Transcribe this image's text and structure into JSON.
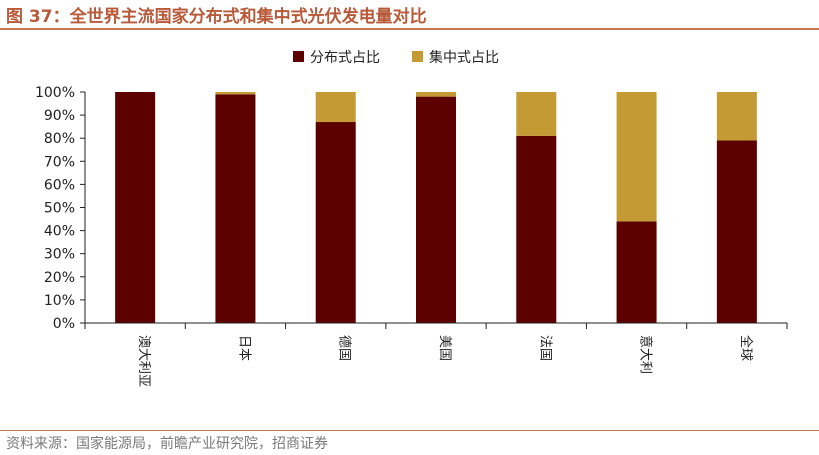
{
  "header": {
    "title": "图 37：全世界主流国家分布式和集中式光伏发电量对比"
  },
  "footer": {
    "source": "资料来源：国家能源局，前瞻产业研究院，招商证券"
  },
  "chart_data": {
    "type": "bar",
    "stacked": true,
    "categories": [
      "澳大利亚",
      "日本",
      "德国",
      "美国",
      "法国",
      "意大利",
      "全球"
    ],
    "series": [
      {
        "name": "分布式占比",
        "color": "#5c0000",
        "values": [
          100,
          99,
          87,
          98,
          81,
          44,
          79
        ]
      },
      {
        "name": "集中式占比",
        "color": "#c49a35",
        "values": [
          0,
          1,
          13,
          2,
          19,
          56,
          21
        ]
      }
    ],
    "yticks": [
      "0%",
      "10%",
      "20%",
      "30%",
      "40%",
      "50%",
      "60%",
      "70%",
      "80%",
      "90%",
      "100%"
    ],
    "ylim": [
      0,
      100
    ],
    "legend_position": "top-center",
    "grid": false
  }
}
